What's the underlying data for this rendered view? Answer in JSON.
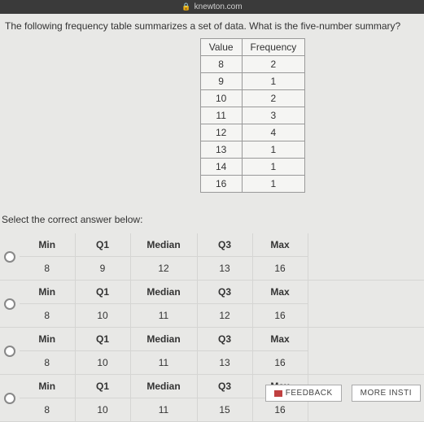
{
  "url_bar": {
    "domain": "knewton.com"
  },
  "question": "The following frequency table summarizes a set of data. What is the five-number summary?",
  "freq_table": {
    "headers": [
      "Value",
      "Frequency"
    ],
    "rows": [
      [
        "8",
        "2"
      ],
      [
        "9",
        "1"
      ],
      [
        "10",
        "2"
      ],
      [
        "11",
        "3"
      ],
      [
        "12",
        "4"
      ],
      [
        "13",
        "1"
      ],
      [
        "14",
        "1"
      ],
      [
        "16",
        "1"
      ]
    ]
  },
  "select_prompt": "Select the correct answer below:",
  "answer_headers": [
    "Min",
    "Q1",
    "Median",
    "Q3",
    "Max"
  ],
  "options": [
    {
      "values": [
        "8",
        "9",
        "12",
        "13",
        "16"
      ]
    },
    {
      "values": [
        "8",
        "10",
        "11",
        "12",
        "16"
      ]
    },
    {
      "values": [
        "8",
        "10",
        "11",
        "13",
        "16"
      ]
    },
    {
      "values": [
        "8",
        "10",
        "11",
        "15",
        "16"
      ]
    }
  ],
  "footer": {
    "feedback": "FEEDBACK",
    "more": "MORE INSTI"
  }
}
